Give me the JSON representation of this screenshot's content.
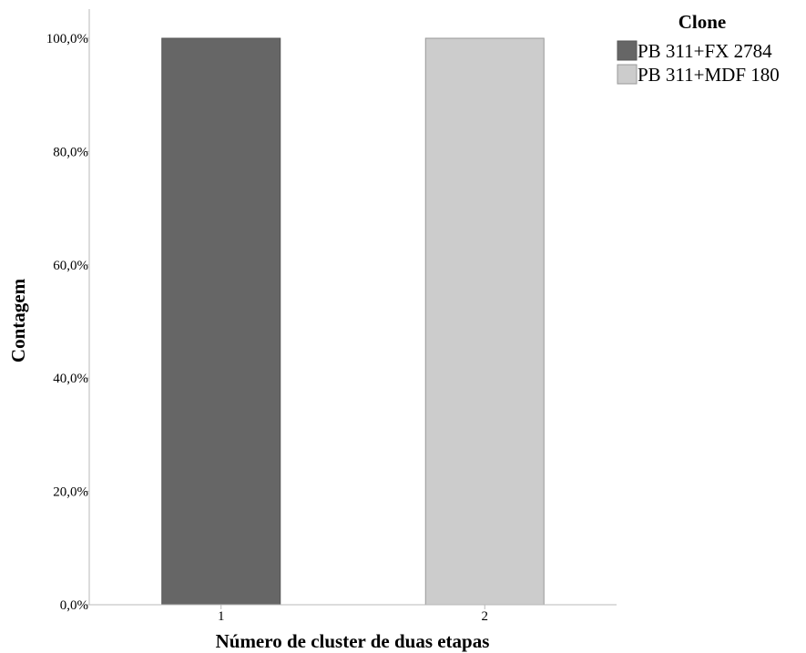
{
  "chart_data": {
    "type": "bar",
    "xlabel": "Número de cluster de duas etapas",
    "ylabel": "Contagem",
    "categories": [
      "1",
      "2"
    ],
    "series": [
      {
        "name": "PB 311+FX 2784",
        "color": "#666666",
        "values": [
          100,
          0
        ]
      },
      {
        "name": "PB 311+MDF 180",
        "color": "#cccccc",
        "values": [
          0,
          100
        ]
      }
    ],
    "ylim": [
      0,
      100
    ],
    "yticks": [
      0,
      20,
      40,
      60,
      80,
      100
    ],
    "ytick_labels": [
      "0,0%",
      "20,0%",
      "40,0%",
      "60,0%",
      "80,0%",
      "100,0%"
    ],
    "grid": false,
    "legend": {
      "title": "Clone",
      "position": "top-right",
      "entries": [
        "PB 311+FX 2784",
        "PB 311+MDF 180"
      ]
    }
  }
}
